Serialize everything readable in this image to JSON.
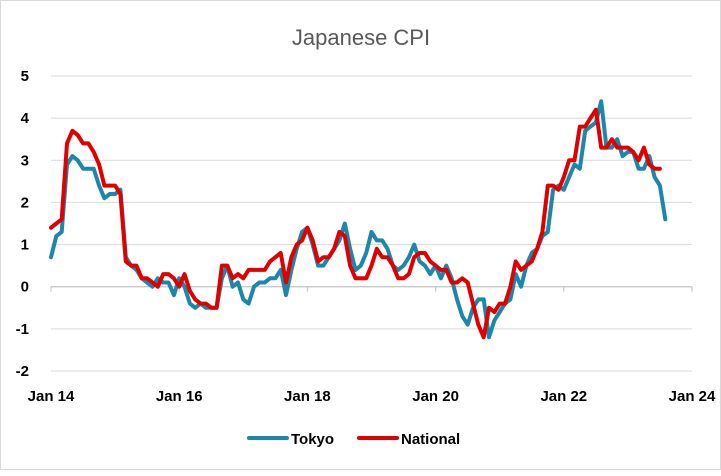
{
  "chart_data": {
    "type": "line",
    "title": "Japanese CPI",
    "xlabel": "",
    "ylabel": "",
    "ylim": [
      -2,
      5
    ],
    "yticks": [
      -2,
      -1,
      0,
      1,
      2,
      3,
      4,
      5
    ],
    "xlim": [
      2014,
      2024
    ],
    "xticks": [
      {
        "value": 2014,
        "label": "Jan 14"
      },
      {
        "value": 2016,
        "label": "Jan 16"
      },
      {
        "value": 2018,
        "label": "Jan 18"
      },
      {
        "value": 2020,
        "label": "Jan 20"
      },
      {
        "value": 2022,
        "label": "Jan 22"
      },
      {
        "value": 2024,
        "label": "Jan 24"
      }
    ],
    "grid": true,
    "legend": "bottom",
    "series": [
      {
        "name": "Tokyo",
        "color": "#1b87aa",
        "start": "Jan 2014",
        "values": [
          0.7,
          1.2,
          1.3,
          2.9,
          3.1,
          3.0,
          2.8,
          2.8,
          2.8,
          2.4,
          2.1,
          2.2,
          2.2,
          2.3,
          0.7,
          0.5,
          0.4,
          0.2,
          0.1,
          0.0,
          0.2,
          0.1,
          0.1,
          -0.2,
          0.2,
          0.0,
          -0.4,
          -0.5,
          -0.4,
          -0.5,
          -0.5,
          -0.5,
          0.2,
          0.5,
          0.0,
          0.1,
          -0.3,
          -0.4,
          0.0,
          0.1,
          0.1,
          0.2,
          0.2,
          0.4,
          -0.2,
          0.4,
          0.9,
          1.3,
          1.4,
          1.0,
          0.5,
          0.5,
          0.7,
          0.9,
          1.1,
          1.5,
          0.9,
          0.4,
          0.5,
          0.8,
          1.3,
          1.1,
          1.1,
          0.9,
          0.5,
          0.4,
          0.5,
          0.7,
          1.0,
          0.6,
          0.5,
          0.3,
          0.5,
          0.2,
          0.5,
          0.2,
          -0.3,
          -0.7,
          -0.9,
          -0.5,
          -0.3,
          -0.3,
          -1.2,
          -0.8,
          -0.6,
          -0.4,
          -0.3,
          0.3,
          0.0,
          0.5,
          0.8,
          0.9,
          1.2,
          1.3,
          2.3,
          2.4,
          2.3,
          2.6,
          2.9,
          2.8,
          3.7,
          3.8,
          3.9,
          4.4,
          3.3,
          3.3,
          3.5,
          3.1,
          3.2,
          3.2,
          2.8,
          2.8,
          3.1,
          2.6,
          2.4,
          1.6
        ]
      },
      {
        "name": "National",
        "color": "#e00000",
        "start": "Jan 2014",
        "values": [
          1.4,
          1.5,
          1.6,
          3.4,
          3.7,
          3.6,
          3.4,
          3.4,
          3.2,
          2.9,
          2.4,
          2.4,
          2.4,
          2.2,
          0.6,
          0.5,
          0.5,
          0.2,
          0.2,
          0.1,
          0.0,
          0.3,
          0.3,
          0.2,
          0.0,
          0.3,
          -0.1,
          -0.3,
          -0.4,
          -0.4,
          -0.5,
          -0.5,
          0.5,
          0.5,
          0.2,
          0.3,
          0.2,
          0.4,
          0.4,
          0.4,
          0.4,
          0.6,
          0.7,
          0.8,
          0.1,
          0.7,
          1.0,
          1.1,
          1.4,
          1.1,
          0.6,
          0.7,
          0.7,
          0.9,
          1.3,
          1.2,
          0.5,
          0.2,
          0.2,
          0.2,
          0.5,
          0.9,
          0.7,
          0.7,
          0.5,
          0.2,
          0.2,
          0.3,
          0.7,
          0.8,
          0.8,
          0.6,
          0.5,
          0.4,
          0.4,
          0.1,
          0.1,
          0.2,
          0.1,
          -0.4,
          -0.9,
          -1.2,
          -0.5,
          -0.6,
          -0.4,
          -0.4,
          0.0,
          0.6,
          0.4,
          0.5,
          0.6,
          0.9,
          1.3,
          2.4,
          2.4,
          2.3,
          2.6,
          3.0,
          3.0,
          3.8,
          3.8,
          4.0,
          4.2,
          3.3,
          3.3,
          3.5,
          3.3,
          3.3,
          3.3,
          3.2,
          3.0,
          3.3,
          2.9,
          2.8,
          2.8
        ]
      }
    ]
  }
}
